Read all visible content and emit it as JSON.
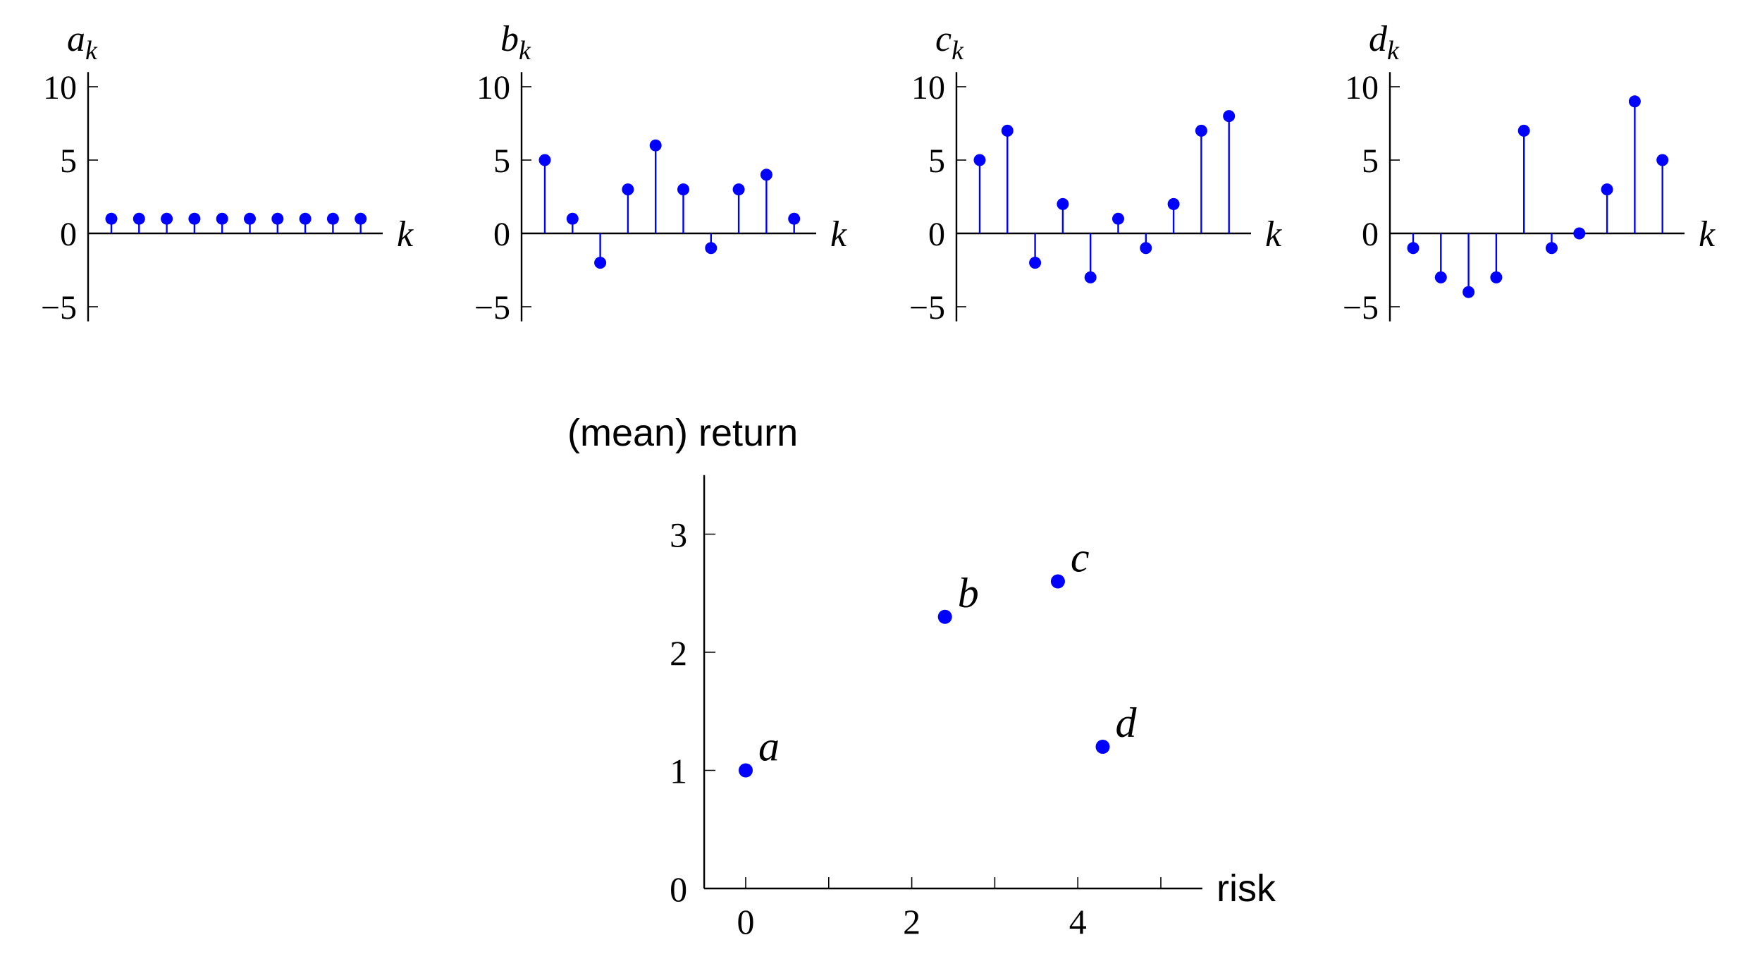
{
  "chart_data": [
    {
      "type": "stem",
      "ylabel": "a",
      "ylabel_sub": "k",
      "xlabel": "k",
      "ylim": [
        -6,
        11
      ],
      "yticks": [
        -5,
        0,
        5,
        10
      ],
      "ytick_labels": [
        "−5",
        "0",
        "5",
        "10"
      ],
      "color": "#0000ff",
      "values": [
        1,
        1,
        1,
        1,
        1,
        1,
        1,
        1,
        1,
        1
      ]
    },
    {
      "type": "stem",
      "ylabel": "b",
      "ylabel_sub": "k",
      "xlabel": "k",
      "ylim": [
        -6,
        11
      ],
      "yticks": [
        -5,
        0,
        5,
        10
      ],
      "ytick_labels": [
        "−5",
        "0",
        "5",
        "10"
      ],
      "color": "#0000ff",
      "values": [
        5,
        1,
        -2,
        3,
        6,
        3,
        -1,
        3,
        4,
        1
      ]
    },
    {
      "type": "stem",
      "ylabel": "c",
      "ylabel_sub": "k",
      "xlabel": "k",
      "ylim": [
        -6,
        11
      ],
      "yticks": [
        -5,
        0,
        5,
        10
      ],
      "ytick_labels": [
        "−5",
        "0",
        "5",
        "10"
      ],
      "color": "#0000ff",
      "values": [
        5,
        7,
        -2,
        2,
        -3,
        1,
        -1,
        2,
        7,
        8
      ]
    },
    {
      "type": "stem",
      "ylabel": "d",
      "ylabel_sub": "k",
      "xlabel": "k",
      "ylim": [
        -6,
        11
      ],
      "yticks": [
        -5,
        0,
        5,
        10
      ],
      "ytick_labels": [
        "−5",
        "0",
        "5",
        "10"
      ],
      "color": "#0000ff",
      "values": [
        -1,
        -3,
        -4,
        -3,
        7,
        -1,
        0,
        3,
        9,
        5
      ]
    },
    {
      "type": "scatter",
      "ylabel": "(mean) return",
      "xlabel": "risk",
      "xlim": [
        -0.5,
        5.5
      ],
      "ylim": [
        0,
        3.5
      ],
      "xticks": [
        0,
        2,
        4
      ],
      "xtick_labels": [
        "0",
        "2",
        "4"
      ],
      "x_minor_ticks": [
        1,
        3,
        5
      ],
      "yticks": [
        0,
        1,
        2,
        3
      ],
      "ytick_labels": [
        "0",
        "1",
        "2",
        "3"
      ],
      "color": "#0000ff",
      "points": [
        {
          "label": "a",
          "x": 0,
          "y": 1.0
        },
        {
          "label": "b",
          "x": 2.4,
          "y": 2.3
        },
        {
          "label": "c",
          "x": 3.76,
          "y": 2.6
        },
        {
          "label": "d",
          "x": 4.3,
          "y": 1.2
        }
      ]
    }
  ]
}
